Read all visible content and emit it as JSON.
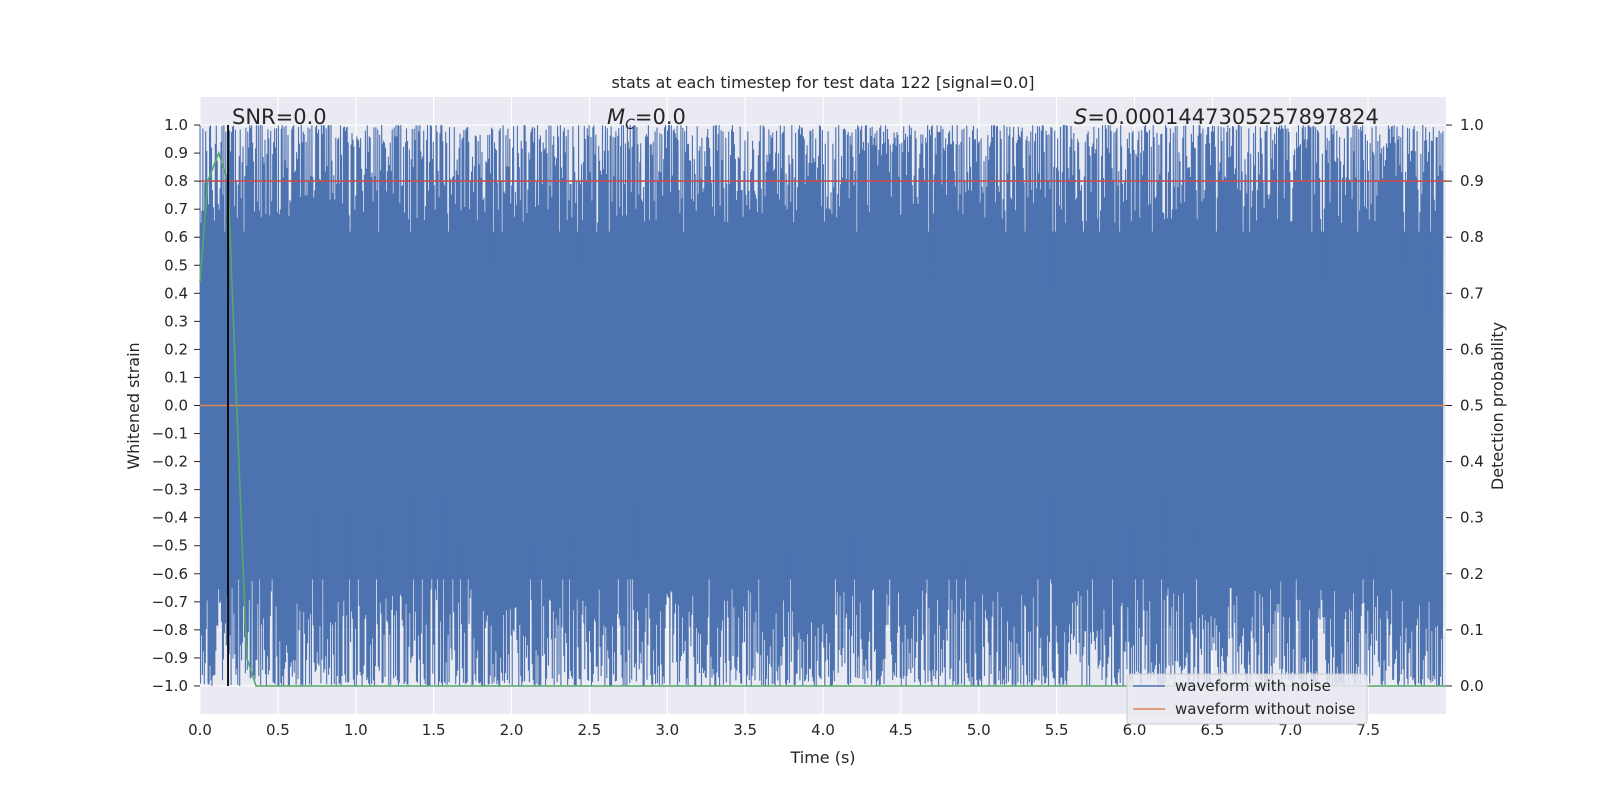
{
  "chart_data": {
    "type": "line",
    "title": "stats at each timestep for test data 122 [signal=0.0]",
    "xlabel": "Time (s)",
    "ylabel": "Whitened strain",
    "ylabel_right": "Detection probability",
    "xlim": [
      0.0,
      8.0
    ],
    "ylim": [
      -1.1,
      1.1
    ],
    "ylim_right": [
      -0.05,
      1.05
    ],
    "x_ticks": [
      "0.0",
      "0.5",
      "1.0",
      "1.5",
      "2.0",
      "2.5",
      "3.0",
      "3.5",
      "4.0",
      "4.5",
      "5.0",
      "5.5",
      "6.0",
      "6.5",
      "7.0",
      "7.5"
    ],
    "y_ticks": [
      "1.0",
      "0.9",
      "0.8",
      "0.7",
      "0.6",
      "0.5",
      "0.4",
      "0.3",
      "0.2",
      "0.1",
      "0.0",
      "−0.1",
      "−0.2",
      "−0.3",
      "−0.4",
      "−0.5",
      "−0.6",
      "−0.7",
      "−0.8",
      "−0.9",
      "−1.0"
    ],
    "y_ticks_right": [
      "1.0",
      "0.9",
      "0.8",
      "0.7",
      "0.6",
      "0.5",
      "0.4",
      "0.3",
      "0.2",
      "0.1",
      "0.0"
    ],
    "grid": true,
    "legend_placement": "lower-right",
    "annotations": {
      "snr": "SNR=0.0",
      "mc_symbol": "M",
      "mc_sub": "C",
      "mc_value": "=0.0",
      "s_symbol": "S",
      "s_value": "=0.0001447305257897824"
    },
    "series": [
      {
        "name": "waveform with noise",
        "color": "#4c72b0",
        "description_axis": "left",
        "envelope": "noise between -1.0 and 1.0"
      },
      {
        "name": "waveform without noise",
        "color": "#dd8452",
        "axis": "left",
        "x": [
          0.0,
          8.0
        ],
        "y": [
          0.0,
          0.0
        ]
      },
      {
        "color": "#55a868",
        "axis": "right",
        "x": [
          0.0,
          0.05,
          0.12,
          0.18,
          0.25,
          0.3,
          0.36,
          8.0
        ],
        "y": [
          0.72,
          0.9,
          0.95,
          0.9,
          0.4,
          0.05,
          0.0,
          0.0
        ]
      },
      {
        "color": "#c44e52",
        "axis": "right",
        "x": [
          0.0,
          8.0
        ],
        "y": [
          0.9,
          0.9
        ]
      },
      {
        "color": "#000000",
        "axis": "left",
        "vertical_line_x": 0.18
      }
    ]
  }
}
